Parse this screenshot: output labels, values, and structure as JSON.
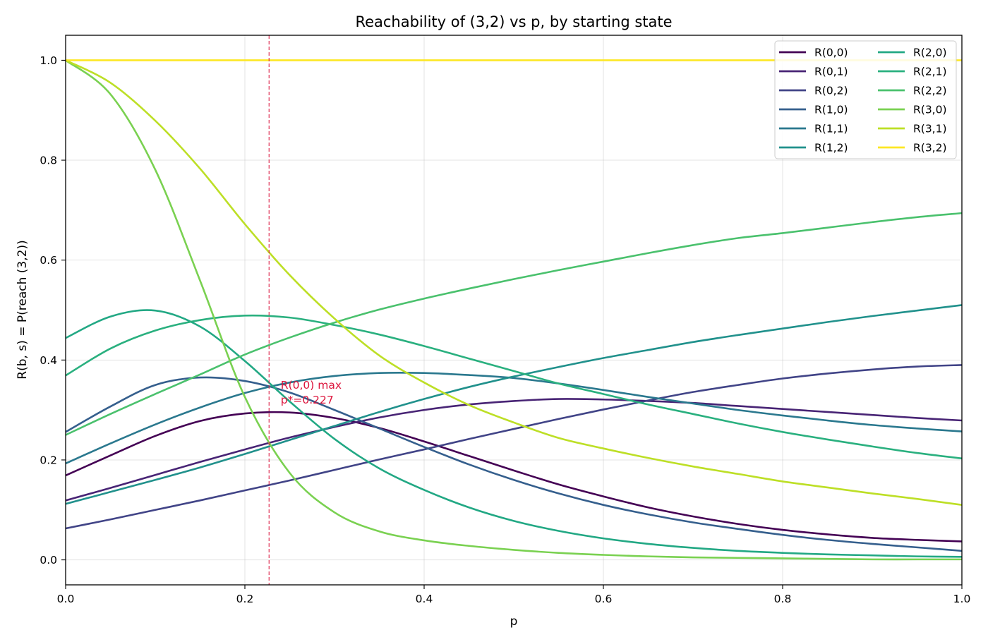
{
  "chart_data": {
    "type": "line",
    "title": "Reachability of (3,2) vs p, by starting state",
    "xlabel": "p",
    "ylabel": "R(b, s) = P(reach (3,2))",
    "xlim": [
      0.0,
      1.0
    ],
    "ylim": [
      -0.05,
      1.05
    ],
    "xticks": [
      0.0,
      0.2,
      0.4,
      0.6,
      0.8,
      1.0
    ],
    "yticks": [
      0.0,
      0.2,
      0.4,
      0.6,
      0.8,
      1.0
    ],
    "xtick_labels": [
      "0.0",
      "0.2",
      "0.4",
      "0.6",
      "0.8",
      "1.0"
    ],
    "ytick_labels": [
      "0.0",
      "0.2",
      "0.4",
      "0.6",
      "0.8",
      "1.0"
    ],
    "grid": true,
    "legend_position": "top-right",
    "legend_columns": 2,
    "annotation": {
      "line1": "R(0,0) max",
      "line2": "p*=0.227",
      "vline_x": 0.227,
      "text_x": 0.24,
      "text_y": 0.33,
      "color": "#dc143c"
    },
    "x": [
      0.0,
      0.05,
      0.1,
      0.15,
      0.2,
      0.25,
      0.3,
      0.35,
      0.4,
      0.45,
      0.5,
      0.55,
      0.6,
      0.65,
      0.7,
      0.75,
      0.8,
      0.85,
      0.9,
      0.95,
      1.0
    ],
    "series": [
      {
        "name": "R(0,0)",
        "color": "#440154",
        "values": [
          0.169,
          0.209,
          0.248,
          0.278,
          0.293,
          0.295,
          0.284,
          0.264,
          0.237,
          0.208,
          0.179,
          0.151,
          0.127,
          0.105,
          0.087,
          0.072,
          0.06,
          0.051,
          0.044,
          0.04,
          0.037
        ]
      },
      {
        "name": "R(0,1)",
        "color": "#482475",
        "values": [
          0.119,
          0.144,
          0.17,
          0.196,
          0.221,
          0.245,
          0.266,
          0.285,
          0.3,
          0.311,
          0.318,
          0.322,
          0.321,
          0.318,
          0.314,
          0.308,
          0.302,
          0.296,
          0.29,
          0.284,
          0.279
        ]
      },
      {
        "name": "R(0,2)",
        "color": "#414487",
        "values": [
          0.063,
          0.081,
          0.1,
          0.119,
          0.139,
          0.159,
          0.18,
          0.201,
          0.221,
          0.242,
          0.262,
          0.282,
          0.301,
          0.319,
          0.336,
          0.35,
          0.363,
          0.373,
          0.381,
          0.387,
          0.39
        ]
      },
      {
        "name": "R(1,0)",
        "color": "#355f8d",
        "values": [
          0.256,
          0.307,
          0.35,
          0.365,
          0.358,
          0.335,
          0.3,
          0.263,
          0.226,
          0.191,
          0.16,
          0.133,
          0.11,
          0.091,
          0.075,
          0.062,
          0.05,
          0.04,
          0.032,
          0.025,
          0.018
        ]
      },
      {
        "name": "R(1,1)",
        "color": "#2a788e",
        "values": [
          0.193,
          0.233,
          0.271,
          0.305,
          0.334,
          0.355,
          0.368,
          0.374,
          0.374,
          0.37,
          0.364,
          0.353,
          0.34,
          0.326,
          0.313,
          0.3,
          0.289,
          0.279,
          0.27,
          0.263,
          0.257
        ]
      },
      {
        "name": "R(1,2)",
        "color": "#21918c",
        "values": [
          0.112,
          0.136,
          0.16,
          0.185,
          0.212,
          0.24,
          0.268,
          0.296,
          0.322,
          0.346,
          0.367,
          0.386,
          0.404,
          0.42,
          0.436,
          0.45,
          0.463,
          0.476,
          0.488,
          0.499,
          0.51
        ]
      },
      {
        "name": "R(2,0)",
        "color": "#22a884",
        "values": [
          0.444,
          0.487,
          0.499,
          0.467,
          0.398,
          0.317,
          0.242,
          0.183,
          0.14,
          0.105,
          0.078,
          0.058,
          0.043,
          0.032,
          0.024,
          0.018,
          0.014,
          0.011,
          0.009,
          0.007,
          0.006
        ]
      },
      {
        "name": "R(2,1)",
        "color": "#2ab07f",
        "values": [
          0.369,
          0.423,
          0.459,
          0.48,
          0.489,
          0.485,
          0.47,
          0.451,
          0.428,
          0.403,
          0.378,
          0.353,
          0.332,
          0.311,
          0.292,
          0.273,
          0.256,
          0.241,
          0.227,
          0.214,
          0.203
        ]
      },
      {
        "name": "R(2,2)",
        "color": "#4ac16d",
        "values": [
          0.25,
          0.292,
          0.332,
          0.371,
          0.411,
          0.445,
          0.475,
          0.501,
          0.523,
          0.543,
          0.562,
          0.58,
          0.597,
          0.614,
          0.63,
          0.644,
          0.654,
          0.665,
          0.676,
          0.686,
          0.694
        ]
      },
      {
        "name": "R(3,0)",
        "color": "#7ad151",
        "values": [
          1.0,
          0.932,
          0.781,
          0.559,
          0.326,
          0.174,
          0.095,
          0.057,
          0.039,
          0.028,
          0.02,
          0.014,
          0.01,
          0.007,
          0.005,
          0.004,
          0.003,
          0.002,
          0.001,
          0.001,
          0.001
        ]
      },
      {
        "name": "R(3,1)",
        "color": "#bddf26",
        "values": [
          1.0,
          0.955,
          0.879,
          0.783,
          0.672,
          0.57,
          0.483,
          0.409,
          0.355,
          0.31,
          0.275,
          0.244,
          0.223,
          0.204,
          0.187,
          0.172,
          0.157,
          0.145,
          0.133,
          0.122,
          0.11
        ]
      },
      {
        "name": "R(3,2)",
        "color": "#fde725",
        "values": [
          1.0,
          1.0,
          1.0,
          1.0,
          1.0,
          1.0,
          1.0,
          1.0,
          1.0,
          1.0,
          1.0,
          1.0,
          1.0,
          1.0,
          1.0,
          1.0,
          1.0,
          1.0,
          1.0,
          1.0,
          1.0
        ]
      }
    ]
  }
}
